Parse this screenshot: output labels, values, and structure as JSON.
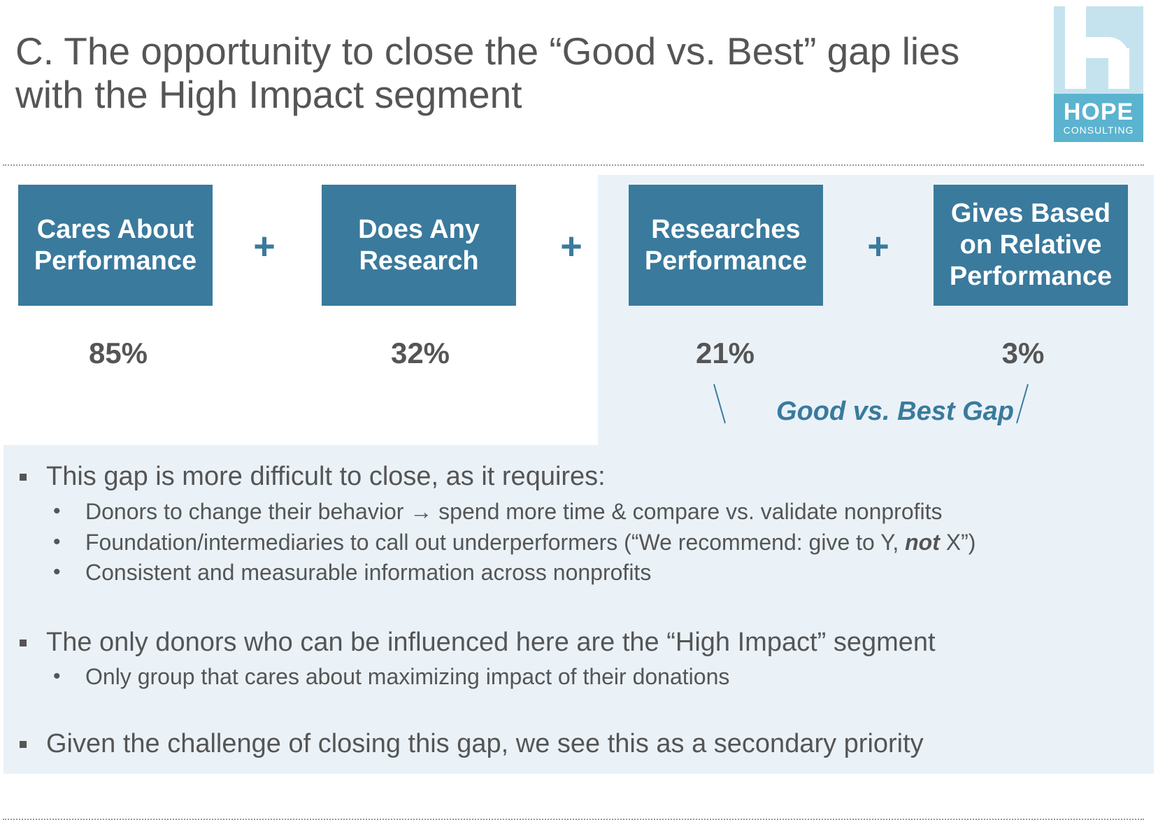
{
  "title": "C. The opportunity to close the “Good vs. Best” gap lies with the High Impact segment",
  "logo": {
    "word": "HOPE",
    "sub": "CONSULTING"
  },
  "steps": [
    {
      "label": "Cares About Performance",
      "percent": "85%"
    },
    {
      "label": "Does Any Research",
      "percent": "32%"
    },
    {
      "label": "Researches Performance",
      "percent": "21%"
    },
    {
      "label": "Gives Based on Relative Performance",
      "percent": "3%"
    }
  ],
  "plus_symbol": "+",
  "gap_label": "Good vs. Best Gap",
  "bullets": {
    "b1": "This gap is more difficult to close, as it requires:",
    "b1_subs": [
      "Donors to change their behavior → spend more time & compare vs. validate nonprofits",
      "Foundation/intermediaries to call out underperformers (“We recommend: give to Y, ",
      "Consistent and measurable information across nonprofits"
    ],
    "b1_sub2_emphasis": "not",
    "b1_sub2_end": " X”)",
    "b2": "The only donors who can be influenced here are the “High Impact” segment",
    "b2_subs": [
      "Only group that cares about maximizing impact of their donations"
    ],
    "b3": "Given the challenge of closing this gap, we see this as a secondary priority"
  },
  "colors": {
    "box_fill": "#3a7a9d",
    "panel": "#eaf2f8",
    "logo_light": "#c5e3ee",
    "logo_band": "#5bb3cf",
    "text": "#555555"
  }
}
